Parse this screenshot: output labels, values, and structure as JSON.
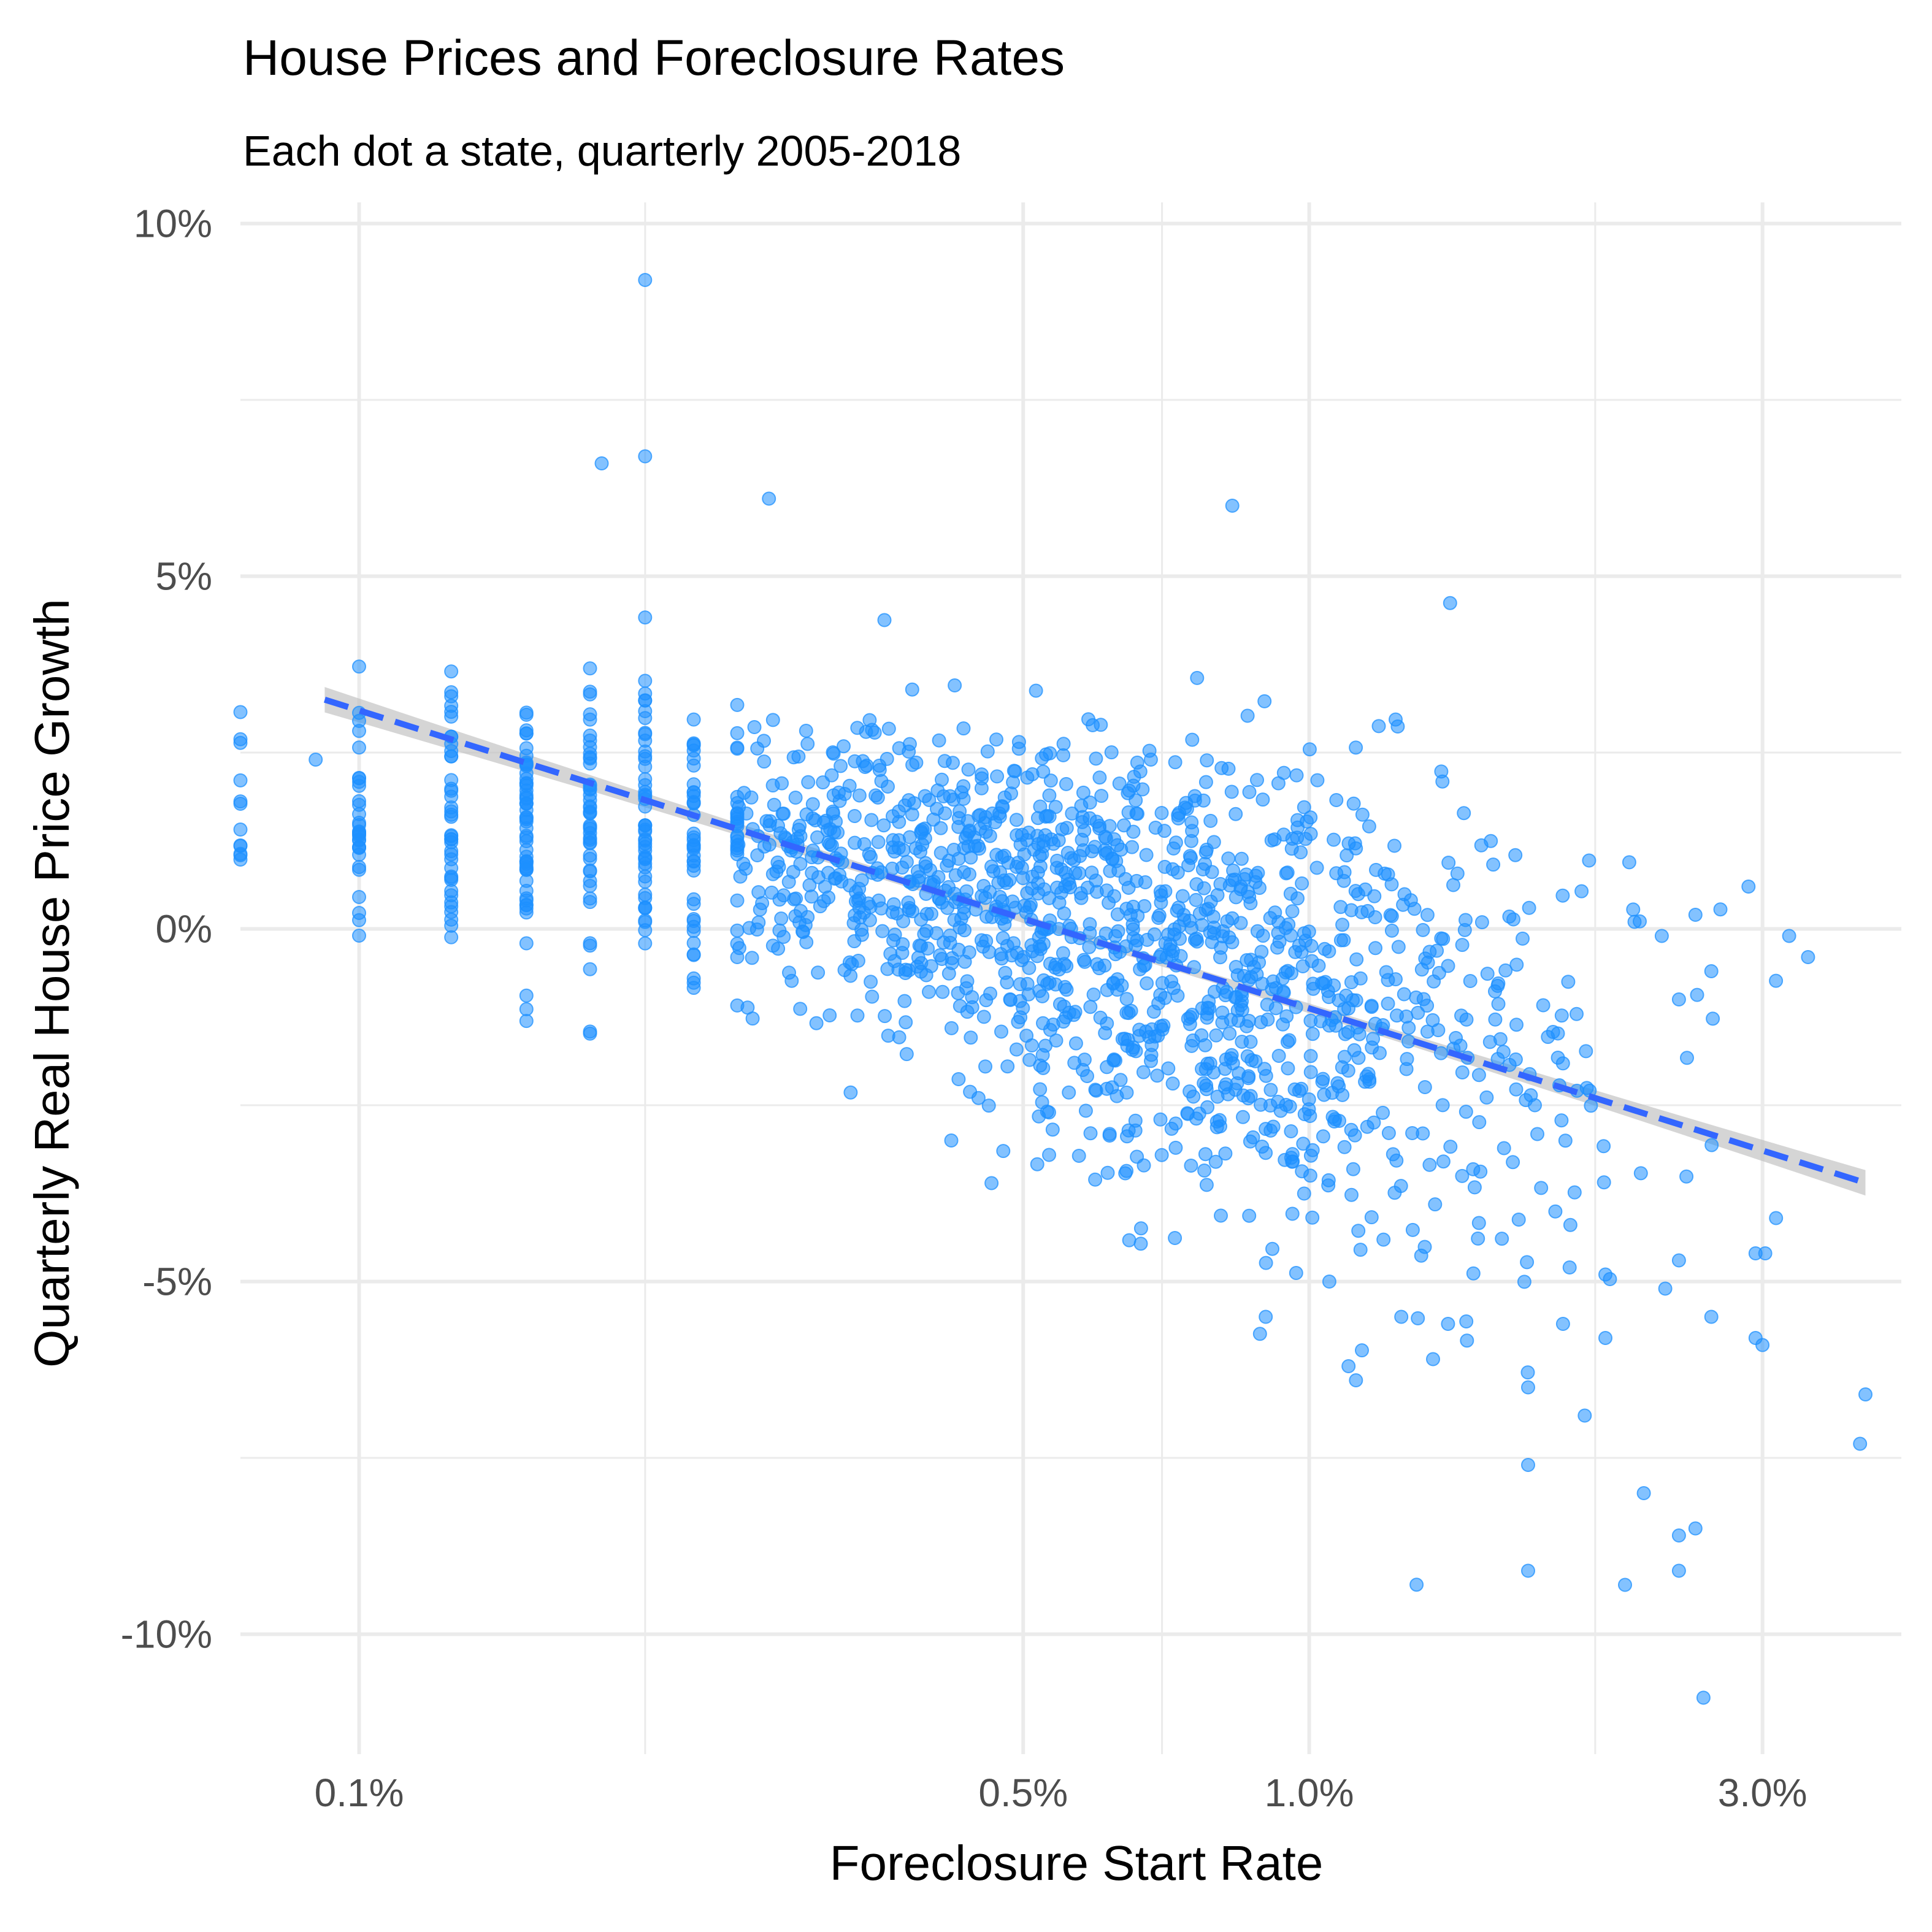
{
  "chart_data": {
    "type": "scatter",
    "title": "House Prices and Foreclosure Rates",
    "subtitle": "Each dot a state, quarterly 2005-2018",
    "xlabel": "Foreclosure Start Rate",
    "ylabel": "Quarterly Real House Price Growth",
    "x_scale": "log10",
    "xlim": [
      0.00075,
      0.042
    ],
    "ylim": [
      -11.7,
      10.3
    ],
    "x_ticks": [
      {
        "value": 0.001,
        "label": "0.1%"
      },
      {
        "value": 0.005,
        "label": "0.5%"
      },
      {
        "value": 0.01,
        "label": "1.0%"
      },
      {
        "value": 0.03,
        "label": "3.0%"
      }
    ],
    "x_minor_gridlines": [
      0.002,
      0.007,
      0.02
    ],
    "y_ticks": [
      {
        "value": 10,
        "label": "10%"
      },
      {
        "value": 5,
        "label": "5%"
      },
      {
        "value": 0,
        "label": "0%"
      },
      {
        "value": -5,
        "label": "-5%"
      },
      {
        "value": -10,
        "label": "-10%"
      }
    ],
    "y_minor_gridlines": [
      7.5,
      2.5,
      -2.5,
      -7.5
    ],
    "grid": true,
    "legend": "none",
    "colors": {
      "points": "#1e90ff",
      "trend_line": "#3366ff",
      "confidence_band": "#bebebe",
      "grid": "#ebebeb"
    },
    "trend_line": {
      "style": "dashed",
      "x_start": 0.00092,
      "y_start": 3.25,
      "x_end": 0.0385,
      "y_end": -3.6,
      "band_halfwidth_end": 0.18,
      "band_halfwidth_mid": 0.06
    },
    "notable_points": [
      {
        "x": 0.002,
        "y": 9.2
      },
      {
        "x": 0.002,
        "y": 6.7
      },
      {
        "x": 0.0018,
        "y": 6.6
      },
      {
        "x": 0.0027,
        "y": 6.1
      },
      {
        "x": 0.0083,
        "y": 6.0
      },
      {
        "x": 0.0009,
        "y": 2.4
      },
      {
        "x": 0.0042,
        "y": -3.0
      },
      {
        "x": 0.029,
        "y": 0.6
      },
      {
        "x": 0.032,
        "y": -0.1
      },
      {
        "x": 0.0335,
        "y": -0.4
      },
      {
        "x": 0.0385,
        "y": -6.6
      },
      {
        "x": 0.038,
        "y": -7.3
      },
      {
        "x": 0.031,
        "y": -4.1
      },
      {
        "x": 0.026,
        "y": -10.9
      },
      {
        "x": 0.0215,
        "y": -9.3
      },
      {
        "x": 0.017,
        "y": -9.1
      },
      {
        "x": 0.0245,
        "y": -9.1
      },
      {
        "x": 0.0225,
        "y": -8.0
      },
      {
        "x": 0.0245,
        "y": -8.6
      },
      {
        "x": 0.0255,
        "y": -8.5
      },
      {
        "x": 0.017,
        "y": -7.6
      },
      {
        "x": 0.0195,
        "y": -6.9
      },
      {
        "x": 0.017,
        "y": -6.5
      },
      {
        "x": 0.0295,
        "y": -5.8
      },
      {
        "x": 0.03,
        "y": -5.9
      },
      {
        "x": 0.0185,
        "y": -5.6
      },
      {
        "x": 0.0205,
        "y": -5.8
      },
      {
        "x": 0.009,
        "y": -5.5
      },
      {
        "x": 0.0105,
        "y": -5.0
      },
      {
        "x": 0.011,
        "y": -6.2
      },
      {
        "x": 0.0112,
        "y": -6.4
      },
      {
        "x": 0.0125,
        "y": -5.5
      },
      {
        "x": 0.0135,
        "y": -6.1
      },
      {
        "x": 0.014,
        "y": -5.6
      },
      {
        "x": 0.0237,
        "y": -5.1
      },
      {
        "x": 0.0265,
        "y": -5.5
      },
      {
        "x": 0.0295,
        "y": -4.6
      },
      {
        "x": 0.0302,
        "y": -4.6
      },
      {
        "x": 0.0245,
        "y": -4.7
      },
      {
        "x": 0.0205,
        "y": -4.9
      },
      {
        "x": 0.0188,
        "y": -4.8
      },
      {
        "x": 0.0235,
        "y": -0.1
      },
      {
        "x": 0.022,
        "y": 0.1
      },
      {
        "x": 0.0255,
        "y": 0.2
      },
      {
        "x": 0.0265,
        "y": -0.6
      },
      {
        "x": 0.0245,
        "y": -1.0
      }
    ],
    "cluster_description": [
      {
        "x_center": 0.0017,
        "x_spread": 0.55,
        "y_center": 1.6,
        "y_spread": 0.9,
        "count": 260
      },
      {
        "x_center": 0.0035,
        "x_spread": 0.45,
        "y_center": 0.9,
        "y_spread": 1.0,
        "count": 420
      },
      {
        "x_center": 0.0055,
        "x_spread": 0.4,
        "y_center": 0.3,
        "y_spread": 1.3,
        "count": 360
      },
      {
        "x_center": 0.008,
        "x_spread": 0.35,
        "y_center": -0.9,
        "y_spread": 1.5,
        "count": 360
      },
      {
        "x_center": 0.011,
        "x_spread": 0.35,
        "y_center": -1.5,
        "y_spread": 1.6,
        "count": 200
      },
      {
        "x_center": 0.017,
        "x_spread": 0.3,
        "y_center": -2.5,
        "y_spread": 2.0,
        "count": 70
      }
    ]
  }
}
